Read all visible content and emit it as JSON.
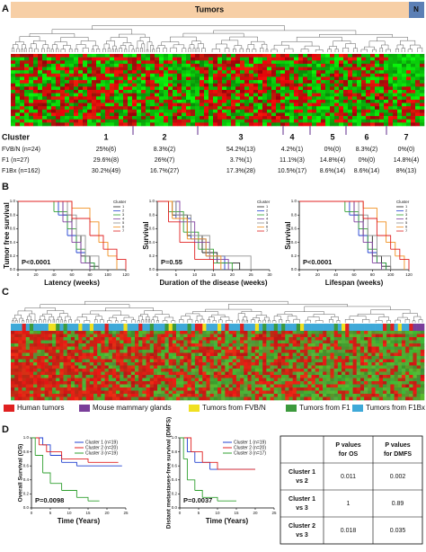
{
  "panel_labels": [
    "A",
    "B",
    "C",
    "D"
  ],
  "panel_a": {
    "bar_labels": [
      "Tumors",
      "N"
    ],
    "cluster_header": "Cluster",
    "clusters": [
      "1",
      "2",
      "3",
      "4",
      "5",
      "6",
      "7"
    ],
    "rows": [
      {
        "name": "FVB/N (n=24)",
        "cells": [
          "25%(6)",
          "8.3%(2)",
          "54.2%(13)",
          "4.2%(1)",
          "0%(0)",
          "8.3%(2)",
          "0%(0)"
        ]
      },
      {
        "name": "F1 (n=27)",
        "cells": [
          "29.6%(8)",
          "26%(7)",
          "3.7%(1)",
          "11.1%(3)",
          "14.8%(4)",
          "0%(0)",
          "14.8%(4)"
        ]
      },
      {
        "name": "F1Bx (n=162)",
        "cells": [
          "30.2%(49)",
          "16.7%(27)",
          "17.3%(28)",
          "10.5%(17)",
          "8.6%(14)",
          "8.6%(14)",
          "8%(13)"
        ]
      }
    ]
  },
  "panel_c": {
    "legend": [
      {
        "name": "Human tumors",
        "color": "#e02020"
      },
      {
        "name": "Mouse mammary glands",
        "color": "#7a3e9a"
      },
      {
        "name": "Tumors from FVB/N",
        "color": "#f0e020"
      },
      {
        "name": "Tumors from F1",
        "color": "#3c9a3c"
      },
      {
        "name": "Tumors from F1Bx",
        "color": "#3fa9d8"
      }
    ]
  },
  "chart_data": [
    {
      "type": "line",
      "ylabel": "Tumor free survival",
      "xlabel": "Latency (weeks)",
      "annotation": "P<0.0001",
      "legend_title": "Cluster",
      "xlim": [
        0,
        120
      ],
      "xticks": [
        0,
        20,
        40,
        60,
        80,
        100,
        120
      ],
      "ylim": [
        0,
        1
      ],
      "yticks": [
        {
          "value": 0,
          "label": "0.0"
        },
        0.2,
        0.4,
        0.6,
        0.8,
        {
          "value": 1,
          "label": "1.0"
        }
      ],
      "series": [
        {
          "name": "1",
          "color": "#222222",
          "x": [
            0,
            50,
            60,
            70,
            80,
            90
          ],
          "values": [
            1,
            0.8,
            0.5,
            0.2,
            0.05,
            0
          ]
        },
        {
          "name": "2",
          "color": "#2040d0",
          "x": [
            0,
            45,
            55,
            65,
            75,
            85
          ],
          "values": [
            1,
            0.8,
            0.5,
            0.25,
            0.1,
            0
          ]
        },
        {
          "name": "3",
          "color": "#30a030",
          "x": [
            0,
            40,
            55,
            65,
            75,
            85
          ],
          "values": [
            1,
            0.85,
            0.6,
            0.3,
            0.1,
            0
          ]
        },
        {
          "name": "4",
          "color": "#8040a0",
          "x": [
            0,
            50,
            60,
            70,
            80
          ],
          "values": [
            1,
            0.7,
            0.4,
            0.1,
            0
          ]
        },
        {
          "name": "5",
          "color": "#909090",
          "x": [
            0,
            55,
            65,
            75,
            90
          ],
          "values": [
            1,
            0.8,
            0.5,
            0.2,
            0
          ]
        },
        {
          "name": "6",
          "color": "#f09020",
          "x": [
            0,
            60,
            80,
            90,
            100,
            110
          ],
          "values": [
            1,
            0.9,
            0.7,
            0.4,
            0.2,
            0
          ]
        },
        {
          "name": "7",
          "color": "#e02020",
          "x": [
            0,
            60,
            80,
            95,
            110,
            120
          ],
          "values": [
            1,
            0.75,
            0.5,
            0.3,
            0.15,
            0
          ]
        }
      ]
    },
    {
      "type": "line",
      "ylabel": "Survival",
      "xlabel": "Duration of the disease (weeks)",
      "annotation": "P=0.55",
      "legend_title": "Cluster",
      "xlim": [
        0,
        30
      ],
      "xticks": [
        0,
        5,
        10,
        15,
        20,
        25,
        30
      ],
      "ylim": [
        0,
        1
      ],
      "yticks": [
        {
          "value": 0,
          "label": "0.0"
        },
        0.2,
        0.4,
        0.6,
        0.8,
        {
          "value": 1,
          "label": "1.0"
        }
      ],
      "series": [
        {
          "name": "1",
          "color": "#222222",
          "x": [
            0,
            4,
            8,
            12,
            16,
            22
          ],
          "values": [
            1,
            0.8,
            0.5,
            0.25,
            0.1,
            0
          ]
        },
        {
          "name": "2",
          "color": "#2040d0",
          "x": [
            0,
            5,
            9,
            13,
            18
          ],
          "values": [
            1,
            0.75,
            0.45,
            0.2,
            0
          ]
        },
        {
          "name": "3",
          "color": "#30a030",
          "x": [
            0,
            3,
            7,
            11,
            15,
            20
          ],
          "values": [
            1,
            0.85,
            0.55,
            0.3,
            0.1,
            0
          ]
        },
        {
          "name": "4",
          "color": "#8040a0",
          "x": [
            0,
            6,
            10,
            14,
            19
          ],
          "values": [
            1,
            0.7,
            0.4,
            0.15,
            0
          ]
        },
        {
          "name": "5",
          "color": "#909090",
          "x": [
            0,
            5,
            9,
            14,
            25
          ],
          "values": [
            1,
            0.8,
            0.5,
            0.2,
            0
          ]
        },
        {
          "name": "6",
          "color": "#f09020",
          "x": [
            0,
            4,
            8,
            13,
            17
          ],
          "values": [
            1,
            0.75,
            0.45,
            0.2,
            0
          ]
        },
        {
          "name": "7",
          "color": "#e02020",
          "x": [
            0,
            3,
            6,
            10,
            15
          ],
          "values": [
            1,
            0.7,
            0.4,
            0.15,
            0
          ]
        }
      ]
    },
    {
      "type": "line",
      "ylabel": "Survival",
      "xlabel": "Lifespan (weeks)",
      "annotation": "P<0.0001",
      "legend_title": "Cluster",
      "xlim": [
        0,
        120
      ],
      "xticks": [
        0,
        20,
        40,
        60,
        80,
        100,
        120
      ],
      "ylim": [
        0,
        1
      ],
      "yticks": [
        {
          "value": 0,
          "label": "0.0"
        },
        0.2,
        0.4,
        0.6,
        0.8,
        {
          "value": 1,
          "label": "1.0"
        }
      ],
      "series": [
        {
          "name": "1",
          "color": "#222222",
          "x": [
            0,
            60,
            70,
            80,
            90,
            100
          ],
          "values": [
            1,
            0.8,
            0.5,
            0.2,
            0.05,
            0
          ]
        },
        {
          "name": "2",
          "color": "#2040d0",
          "x": [
            0,
            55,
            65,
            75,
            85,
            95
          ],
          "values": [
            1,
            0.8,
            0.5,
            0.25,
            0.1,
            0
          ]
        },
        {
          "name": "3",
          "color": "#30a030",
          "x": [
            0,
            50,
            65,
            75,
            85,
            95
          ],
          "values": [
            1,
            0.85,
            0.6,
            0.3,
            0.1,
            0
          ]
        },
        {
          "name": "4",
          "color": "#8040a0",
          "x": [
            0,
            60,
            70,
            80,
            90
          ],
          "values": [
            1,
            0.7,
            0.4,
            0.1,
            0
          ]
        },
        {
          "name": "5",
          "color": "#909090",
          "x": [
            0,
            65,
            75,
            85,
            100
          ],
          "values": [
            1,
            0.8,
            0.5,
            0.2,
            0
          ]
        },
        {
          "name": "6",
          "color": "#f09020",
          "x": [
            0,
            70,
            85,
            95,
            105,
            115
          ],
          "values": [
            1,
            0.9,
            0.7,
            0.4,
            0.2,
            0
          ]
        },
        {
          "name": "7",
          "color": "#e02020",
          "x": [
            0,
            70,
            85,
            100,
            110,
            120
          ],
          "values": [
            1,
            0.75,
            0.5,
            0.3,
            0.15,
            0
          ]
        }
      ]
    },
    {
      "type": "line",
      "ylabel": "Overall Survival (OS)",
      "xlabel": "Time (Years)",
      "annotation": "P=0.0098",
      "xlim": [
        0,
        25
      ],
      "xticks": [
        0,
        5,
        10,
        15,
        20,
        25
      ],
      "ylim": [
        0,
        1
      ],
      "yticks": [
        {
          "value": 0,
          "label": "0.0"
        },
        0.2,
        0.4,
        0.6,
        0.8,
        {
          "value": 1,
          "label": "1.0"
        }
      ],
      "series": [
        {
          "name": "Cluster 1 (n=19)",
          "color": "#2040d0",
          "x": [
            0,
            3,
            5,
            8,
            12,
            24
          ],
          "values": [
            1,
            0.9,
            0.75,
            0.65,
            0.6,
            0.6
          ]
        },
        {
          "name": "Cluster 2 (n=20)",
          "color": "#e02020",
          "x": [
            0,
            2,
            4,
            8,
            15,
            23
          ],
          "values": [
            1,
            0.9,
            0.8,
            0.7,
            0.65,
            0.65
          ]
        },
        {
          "name": "Cluster 3 (n=19)",
          "color": "#30a030",
          "x": [
            0,
            1,
            3,
            5,
            8,
            12,
            15,
            18
          ],
          "values": [
            1,
            0.75,
            0.5,
            0.35,
            0.25,
            0.15,
            0.1,
            0.1
          ]
        }
      ]
    },
    {
      "type": "line",
      "ylabel": "Distant metastases-free survival (DMFS)",
      "xlabel": "Time (Years)",
      "annotation": "P=0.0037",
      "xlim": [
        0,
        25
      ],
      "xticks": [
        0,
        5,
        10,
        15,
        20,
        25
      ],
      "ylim": [
        0,
        1
      ],
      "yticks": [
        {
          "value": 0,
          "label": "0.0"
        },
        0.2,
        0.4,
        0.6,
        0.8,
        {
          "value": 1,
          "label": "1.0"
        }
      ],
      "series": [
        {
          "name": "Cluster 1 (n=19)",
          "color": "#2040d0",
          "x": [
            0,
            2,
            4,
            8,
            20
          ],
          "values": [
            1,
            0.8,
            0.65,
            0.55,
            0.55
          ]
        },
        {
          "name": "Cluster 2 (n=20)",
          "color": "#e02020",
          "x": [
            0,
            3,
            6,
            10,
            20
          ],
          "values": [
            1,
            0.8,
            0.65,
            0.55,
            0.55
          ]
        },
        {
          "name": "Cluster 3 (n=17)",
          "color": "#30a030",
          "x": [
            0,
            1,
            2,
            4,
            6,
            10,
            15
          ],
          "values": [
            1,
            0.7,
            0.4,
            0.25,
            0.15,
            0.1,
            0.1
          ]
        }
      ]
    }
  ],
  "table_d": {
    "headers": [
      [
        "P values",
        "for OS"
      ],
      [
        "P values",
        "for DMFS"
      ]
    ],
    "rows": [
      {
        "label": [
          "Cluster 1",
          "vs 2"
        ],
        "values": [
          0.011,
          0.002
        ]
      },
      {
        "label": [
          "Cluster 1",
          "vs 3"
        ],
        "values": [
          1,
          0.89
        ]
      },
      {
        "label": [
          "Cluster 2",
          "vs 3"
        ],
        "values": [
          0.018,
          0.035
        ]
      }
    ]
  }
}
